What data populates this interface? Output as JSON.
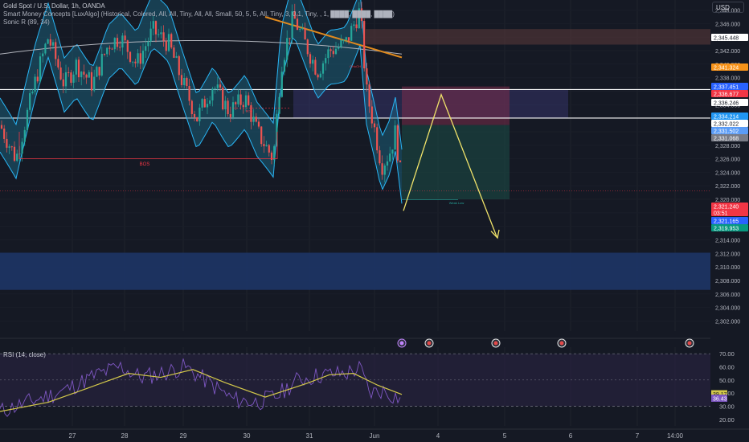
{
  "header": {
    "line1": "Gold Spot / U.S. Dollar, 1h, OANDA",
    "line2": "Smart Money Concepts [LuxAlgo] (Historical, Colored, All, All, Tiny, All, All, Small, 50, 5, 5, All, Tiny, 3, 0.1, Tiny, , 1, ████, ████, ████)",
    "line3": "Sonic R (89, 34)",
    "currency": "USD"
  },
  "chart_data": [
    {
      "type": "candlestick",
      "title": "Gold Spot / U.S. Dollar, 1h, OANDA",
      "ylim": [
        2300.5,
        2349.5
      ],
      "y_ticks": [
        2302,
        2304,
        2306,
        2308,
        2310,
        2312,
        2314,
        2316,
        2318,
        2320,
        2322,
        2324,
        2326,
        2328,
        2330,
        2332,
        2334,
        2336,
        2338,
        2340,
        2342,
        2344,
        2346,
        2348
      ],
      "x_ticks": [
        "27",
        "28",
        "29",
        "30",
        "31",
        "Jun",
        "4",
        "5",
        "6",
        "7",
        "14:00"
      ],
      "price_labels": [
        {
          "text": "2,345.448",
          "color": "#ffffff"
        },
        {
          "text": "2,341.324",
          "color": "#f7931a"
        },
        {
          "text": "2,337.451",
          "color": "#2962ff"
        },
        {
          "text": "2,336.677",
          "color": "#f23645"
        },
        {
          "text": "2,336.246",
          "color": "#ffffff"
        },
        {
          "text": "2,334.214",
          "color": "#2196f3"
        },
        {
          "text": "2,332.022",
          "color": "#ffffff"
        },
        {
          "text": "2,331.502",
          "color": "#5b9cf6"
        },
        {
          "text": "2,331.068",
          "color": "#787b86"
        },
        {
          "text": "2,321.240",
          "color": "#f23645"
        },
        {
          "text": "03:51",
          "color": "#f23645"
        },
        {
          "text": "2,321.165",
          "color": "#2962ff"
        },
        {
          "text": "2,319.953",
          "color": "#089981"
        }
      ],
      "annotations": [
        "BOS",
        "BOS",
        "BOS",
        "CHoCH",
        "Weak Low"
      ],
      "levels": {
        "white_line_1": 2336.246,
        "white_line_2": 2332.022,
        "supply_zone": [
          2342.9,
          2345.2
        ],
        "demand_zone": [
          2306.6,
          2312.1
        ],
        "short_entry": 2331.0,
        "short_stop": 2336.7,
        "short_target": 2320.0
      }
    },
    {
      "type": "line",
      "title": "RSI (14, close)",
      "ylim": [
        15,
        75
      ],
      "y_ticks": [
        20.0,
        30.0,
        40.0,
        50.0,
        60.0,
        70.0
      ],
      "band": [
        30,
        70
      ],
      "series": [
        {
          "name": "RSI",
          "color": "#7e57c2",
          "last": 36.43
        },
        {
          "name": "RSI-based MA",
          "color": "#d4c94a",
          "last": 39.17
        }
      ]
    }
  ]
}
